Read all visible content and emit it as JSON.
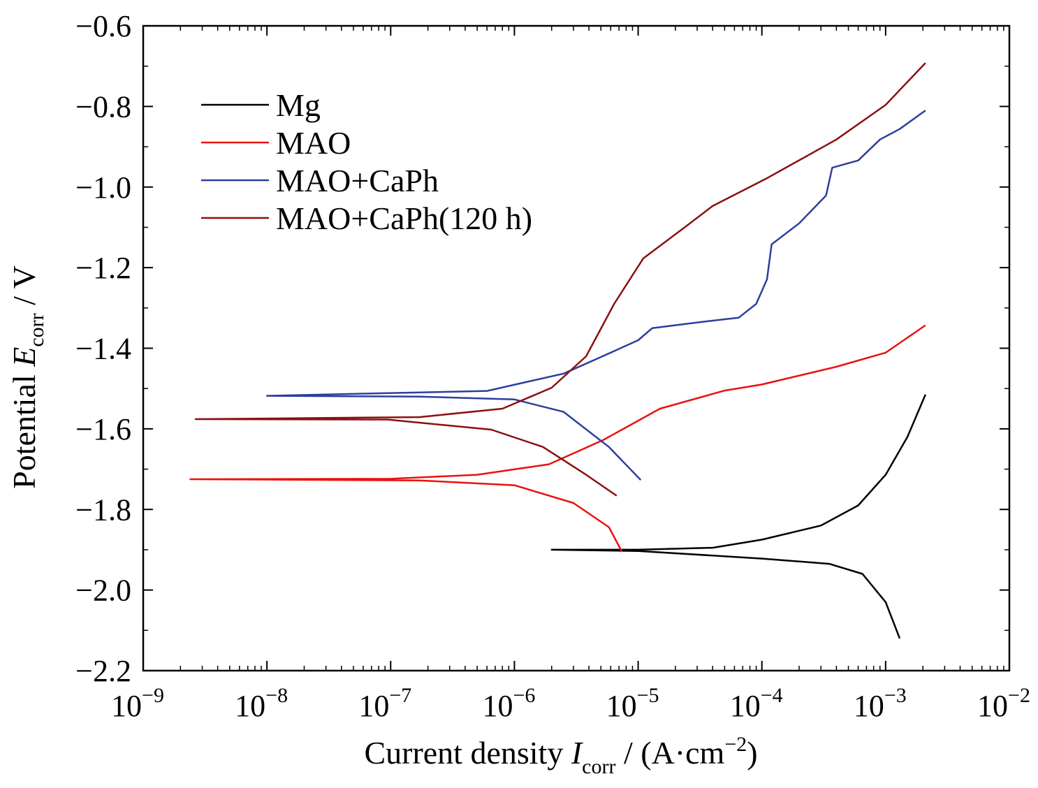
{
  "chart_data": {
    "type": "line",
    "x_scale": "log",
    "xlim": [
      1e-09,
      0.01
    ],
    "ylim": [
      -2.2,
      -0.6
    ],
    "grid": false,
    "legend_placement": "top-left",
    "xlabel": {
      "prefix": "Current density ",
      "var": "I",
      "sub": "corr",
      "suffix": " / (A·cm",
      "sup": "−2",
      "end": ")"
    },
    "ylabel": {
      "prefix": "Potential ",
      "var": "E",
      "sub": "corr",
      "suffix": " / V"
    },
    "x_ticks": [
      1e-09,
      1e-08,
      1e-07,
      1e-06,
      1e-05,
      0.0001,
      0.001,
      0.01
    ],
    "x_tick_labels": [
      {
        "base": "10",
        "exp": "−9"
      },
      {
        "base": "10",
        "exp": "−8"
      },
      {
        "base": "10",
        "exp": "−7"
      },
      {
        "base": "10",
        "exp": "−6"
      },
      {
        "base": "10",
        "exp": "−5"
      },
      {
        "base": "10",
        "exp": "−4"
      },
      {
        "base": "10",
        "exp": "−3"
      },
      {
        "base": "10",
        "exp": "−2"
      }
    ],
    "y_ticks": [
      -0.6,
      -0.8,
      -1.0,
      -1.2,
      -1.4,
      -1.6,
      -1.8,
      -2.0,
      -2.2
    ],
    "y_tick_labels": [
      "−0.6",
      "−0.8",
      "−1.0",
      "−1.2",
      "−1.4",
      "−1.6",
      "−1.8",
      "−2.0",
      "−2.2"
    ],
    "series": [
      {
        "name": "Mg",
        "color": "#000000",
        "points": [
          [
            0.0013,
            -2.12
          ],
          [
            0.001,
            -2.03
          ],
          [
            0.00065,
            -1.96
          ],
          [
            0.00035,
            -1.935
          ],
          [
            0.0001,
            -1.922
          ],
          [
            1e-05,
            -1.903
          ],
          [
            2e-06,
            -1.9
          ],
          [
            1e-05,
            -1.9
          ],
          [
            4e-05,
            -1.895
          ],
          [
            0.0001,
            -1.875
          ],
          [
            0.0003,
            -1.84
          ],
          [
            0.0006,
            -1.79
          ],
          [
            0.001,
            -1.714
          ],
          [
            0.0015,
            -1.62
          ],
          [
            0.0021,
            -1.515
          ]
        ]
      },
      {
        "name": "MAO",
        "color": "#e8130e",
        "points": [
          [
            7.4e-06,
            -1.905
          ],
          [
            5.8e-06,
            -1.844
          ],
          [
            3e-06,
            -1.784
          ],
          [
            1e-06,
            -1.74
          ],
          [
            1.7e-07,
            -1.728
          ],
          [
            1.2e-08,
            -1.726
          ],
          [
            2.4e-09,
            -1.725
          ],
          [
            1e-07,
            -1.724
          ],
          [
            5e-07,
            -1.714
          ],
          [
            1.9e-06,
            -1.688
          ],
          [
            5.2e-06,
            -1.628
          ],
          [
            1.5e-05,
            -1.55
          ],
          [
            5e-05,
            -1.505
          ],
          [
            0.0001,
            -1.49
          ],
          [
            0.0004,
            -1.446
          ],
          [
            0.001,
            -1.411
          ],
          [
            0.0021,
            -1.343
          ]
        ]
      },
      {
        "name": "MAO+CaPh",
        "color": "#2c3f9e",
        "points": [
          [
            1.05e-05,
            -1.727
          ],
          [
            5.8e-06,
            -1.645
          ],
          [
            2.5e-06,
            -1.558
          ],
          [
            1e-06,
            -1.527
          ],
          [
            1.7e-07,
            -1.52
          ],
          [
            1e-08,
            -1.518
          ],
          [
            6e-07,
            -1.506
          ],
          [
            2.5e-06,
            -1.463
          ],
          [
            6e-06,
            -1.411
          ],
          [
            1e-05,
            -1.38
          ],
          [
            1.3e-05,
            -1.35
          ],
          [
            3e-05,
            -1.336
          ],
          [
            6.5e-05,
            -1.324
          ],
          [
            9e-05,
            -1.29
          ],
          [
            0.00011,
            -1.229
          ],
          [
            0.00012,
            -1.142
          ],
          [
            0.0002,
            -1.09
          ],
          [
            0.00033,
            -1.021
          ],
          [
            0.00037,
            -0.952
          ],
          [
            0.0006,
            -0.934
          ],
          [
            0.0009,
            -0.882
          ],
          [
            0.0013,
            -0.856
          ],
          [
            0.0021,
            -0.81
          ]
        ]
      },
      {
        "name": "MAO+CaPh(120 h)",
        "color": "#8b1010",
        "points": [
          [
            6.7e-06,
            -1.766
          ],
          [
            3.8e-06,
            -1.714
          ],
          [
            1.7e-06,
            -1.645
          ],
          [
            6.5e-07,
            -1.602
          ],
          [
            9.5e-08,
            -1.577
          ],
          [
            2.65e-09,
            -1.576
          ],
          [
            1.7e-07,
            -1.571
          ],
          [
            8e-07,
            -1.55
          ],
          [
            2e-06,
            -1.498
          ],
          [
            3.8e-06,
            -1.42
          ],
          [
            6.4e-06,
            -1.29
          ],
          [
            1.1e-05,
            -1.177
          ],
          [
            2.4e-05,
            -1.099
          ],
          [
            4e-05,
            -1.047
          ],
          [
            0.00011,
            -0.978
          ],
          [
            0.0004,
            -0.882
          ],
          [
            0.001,
            -0.796
          ],
          [
            0.0021,
            -0.692
          ]
        ]
      }
    ]
  }
}
